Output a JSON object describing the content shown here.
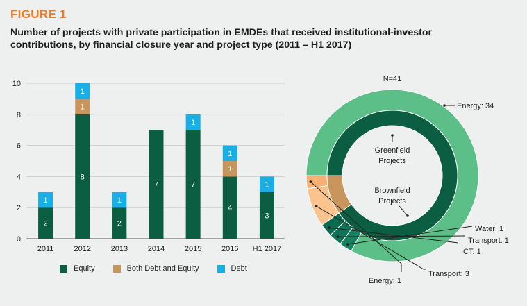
{
  "figure": {
    "label": "FIGURE 1",
    "title_line1": "Number of projects with private participation in EMDEs that received institutional-investor",
    "title_line2": "contributions, by financial closure year and project type (2011 – H1 2017)"
  },
  "colors": {
    "equity": "#0c5e42",
    "both": "#c8955c",
    "debt": "#1aaee6",
    "greenfield_energy": "#5cbf87",
    "greenfield_water": "#16805f",
    "greenfield_transport": "#0f7457",
    "greenfield_ict": "#0b6b4e",
    "brownfield_equity_inner": "#0c5e42",
    "brownfield_both_inner": "#c8955c",
    "brownfield_transport": "#fbc48f",
    "brownfield_energy": "#f7b074",
    "background": "#eef0ef"
  },
  "chart_data": [
    {
      "type": "bar",
      "stacked": true,
      "categories": [
        "2011",
        "2012",
        "2013",
        "2014",
        "2015",
        "2016",
        "H1 2017"
      ],
      "series": [
        {
          "name": "Equity",
          "values": [
            2,
            8,
            2,
            7,
            7,
            4,
            3
          ]
        },
        {
          "name": "Both Debt and Equity",
          "values": [
            0,
            1,
            0,
            0,
            0,
            1,
            0
          ]
        },
        {
          "name": "Debt",
          "values": [
            1,
            1,
            1,
            0,
            1,
            1,
            1
          ]
        }
      ],
      "ylim": [
        0,
        10
      ],
      "yticks": [
        "0",
        "2",
        "4",
        "6",
        "8",
        "10"
      ],
      "grid": true,
      "legend_position": "bottom"
    },
    {
      "type": "pie",
      "variant": "donut",
      "total_label": "N=41",
      "outer_ring": [
        {
          "label": "Energy: 34",
          "value": 34,
          "group": "Greenfield"
        },
        {
          "label": "Water: 1",
          "value": 1,
          "group": "Greenfield"
        },
        {
          "label": "Transport: 1",
          "value": 1,
          "group": "Greenfield"
        },
        {
          "label": "ICT: 1",
          "value": 1,
          "group": "Greenfield"
        },
        {
          "label": "Transport: 3",
          "value": 3,
          "group": "Brownfield"
        },
        {
          "label": "Energy: 1",
          "value": 1,
          "group": "Brownfield"
        }
      ],
      "inner_ring": [
        {
          "label": "Greenfield Projects",
          "value": 37
        },
        {
          "label": "Brownfield Projects",
          "value": 4
        }
      ],
      "inner_labels": {
        "greenfield_line1": "Greenfield",
        "greenfield_line2": "Projects",
        "brownfield_line1": "Brownfield",
        "brownfield_line2": "Projects"
      }
    }
  ]
}
